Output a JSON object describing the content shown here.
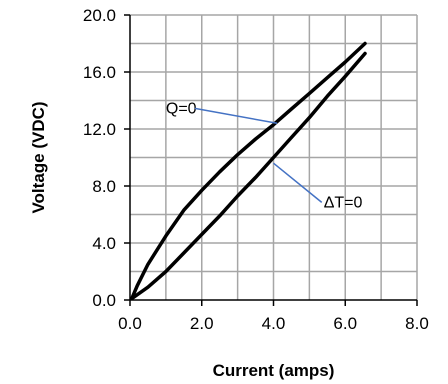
{
  "chart_data": {
    "type": "line",
    "title": "",
    "xlabel": "Current (amps)",
    "ylabel": "Voltage (VDC)",
    "xlim": [
      0,
      8
    ],
    "ylim": [
      0,
      20
    ],
    "x_ticks": [
      "0.0",
      "2.0",
      "4.0",
      "6.0",
      "8.0"
    ],
    "y_ticks": [
      "0.0",
      "4.0",
      "8.0",
      "12.0",
      "16.0",
      "20.0"
    ],
    "x_tick_values": [
      0,
      2,
      4,
      6,
      8
    ],
    "y_tick_values": [
      0,
      4,
      8,
      12,
      16,
      20
    ],
    "grid": true,
    "grid_step": {
      "x": 1,
      "y": 2
    },
    "colors": {
      "curve": "#000000",
      "leader": "#4472c4",
      "grid": "#a6a6a6",
      "axis": "#000000"
    },
    "series": [
      {
        "x": [
          0.05,
          0.2,
          0.5,
          1.0,
          1.5,
          2.0,
          2.5,
          3.0,
          3.5,
          4.0,
          4.5,
          5.0,
          5.5,
          6.0,
          6.55
        ],
        "y": [
          0.1,
          1.0,
          2.5,
          4.5,
          6.3,
          7.7,
          9.0,
          10.2,
          11.3,
          12.3,
          13.4,
          14.5,
          15.6,
          16.7,
          18.0
        ]
      },
      {
        "x": [
          0.05,
          0.5,
          1.0,
          1.5,
          2.0,
          2.5,
          3.0,
          3.5,
          4.0,
          4.5,
          5.0,
          5.5,
          6.0,
          6.55
        ],
        "y": [
          0.1,
          0.9,
          2.0,
          3.3,
          4.6,
          5.9,
          7.3,
          8.6,
          10.0,
          11.4,
          12.8,
          14.3,
          15.7,
          17.3
        ]
      }
    ],
    "annotations": [
      {
        "label": "Q=0",
        "point": [
          4.1,
          12.4
        ],
        "text_at": [
          1.0,
          13.1
        ]
      },
      {
        "label": "ΔT=0",
        "point": [
          4.0,
          9.6
        ],
        "text_at": [
          5.4,
          6.5
        ]
      }
    ]
  }
}
